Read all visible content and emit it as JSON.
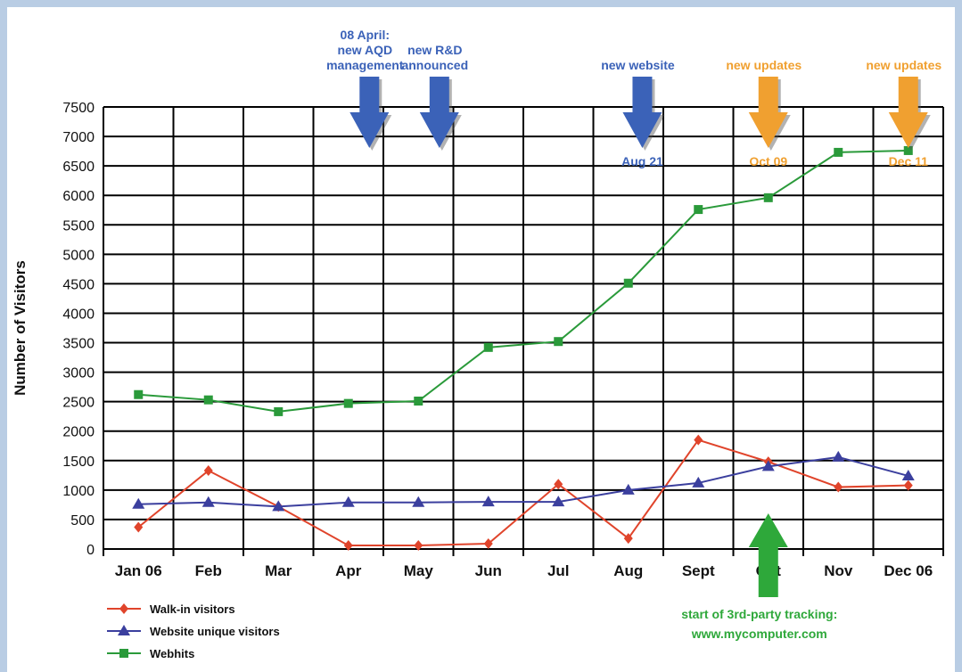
{
  "chart_data": {
    "type": "line",
    "title": "",
    "xlabel": "",
    "ylabel": "Number of Visitors",
    "ylim": [
      0,
      7500
    ],
    "ytick_step": 500,
    "grid": true,
    "categories": [
      "Jan 06",
      "Feb",
      "Mar",
      "Apr",
      "May",
      "Jun",
      "Jul",
      "Aug",
      "Sept",
      "Oct",
      "Nov",
      "Dec 06"
    ],
    "series": [
      {
        "name": "Walk-in visitors",
        "color": "#e0442b",
        "marker": "diamond",
        "values": [
          370,
          1330,
          720,
          60,
          60,
          90,
          1100,
          180,
          1850,
          1480,
          1050,
          1080
        ]
      },
      {
        "name": "Website unique visitors",
        "color": "#3b3f9e",
        "marker": "triangle",
        "values": [
          760,
          790,
          720,
          790,
          790,
          800,
          800,
          1000,
          1120,
          1400,
          1560,
          1240
        ]
      },
      {
        "name": "Webhits",
        "color": "#2a9a3a",
        "marker": "square",
        "values": [
          2620,
          2530,
          2330,
          2470,
          2510,
          3420,
          3520,
          4510,
          5760,
          5960,
          6730,
          6760
        ]
      }
    ],
    "legend_position": "bottom-left",
    "annotations": [
      {
        "text_lines": [
          "08 April:",
          "new AQD",
          "management"
        ],
        "arrow": "down",
        "color": "#3b62b8",
        "category_index": 3.3
      },
      {
        "text_lines": [
          "new R&D",
          "announced"
        ],
        "arrow": "down",
        "color": "#3b62b8",
        "category_index": 4.3
      },
      {
        "text_lines": [
          "new website"
        ],
        "sub_label": "Aug 21",
        "arrow": "down",
        "color": "#3b62b8",
        "category_index": 7.2
      },
      {
        "text_lines": [
          "new updates"
        ],
        "sub_label": "Oct 09",
        "arrow": "down",
        "color": "#f0a030",
        "category_index": 9.0
      },
      {
        "text_lines": [
          "new updates"
        ],
        "sub_label": "Dec 11",
        "arrow": "down",
        "color": "#f0a030",
        "category_index": 11.0
      },
      {
        "text_lines": [
          "start of 3rd-party tracking:",
          "www.mycomputer.com"
        ],
        "arrow": "up",
        "color": "#2ea83a",
        "category_index": 9.0
      }
    ]
  }
}
